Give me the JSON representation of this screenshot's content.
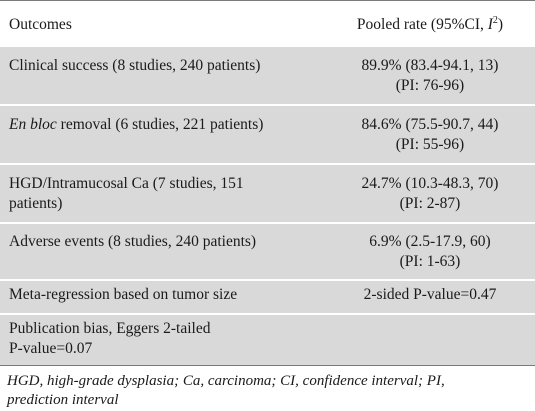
{
  "header": {
    "col1": "Outcomes",
    "col2_prefix": "Pooled rate (95%CI, ",
    "col2_i": "I",
    "col2_sup": "2",
    "col2_suffix": ")"
  },
  "rows": [
    {
      "label": "Clinical success (8 studies, 240 patients)",
      "value_line1": "89.9% (83.4-94.1, 13)",
      "value_line2": "(PI: 76-96)"
    },
    {
      "label_italic": "En bloc",
      "label_rest": " removal (6 studies, 221 patients)",
      "value_line1": "84.6% (75.5-90.7, 44)",
      "value_line2": "(PI: 55-96)"
    },
    {
      "label_line1": "HGD/Intramucosal Ca (7 studies, 151",
      "label_line2": "patients)",
      "value_line1": "24.7% (10.3-48.3, 70)",
      "value_line2": "(PI: 2-87)"
    },
    {
      "label": "Adverse events (8 studies, 240 patients)",
      "value_line1": "6.9% (2.5-17.9, 60)",
      "value_line2": "(PI: 1-63)"
    },
    {
      "label": "Meta-regression based on tumor size",
      "value_line1": "2-sided P-value=0.47"
    },
    {
      "label_line1": "Publication bias, Eggers 2-tailed",
      "label_line2": "P-value=0.07"
    }
  ],
  "footnote": {
    "line1": "HGD, high-grade dysplasia; Ca, carcinoma; CI, confidence interval; PI,",
    "line2": "prediction interval"
  }
}
